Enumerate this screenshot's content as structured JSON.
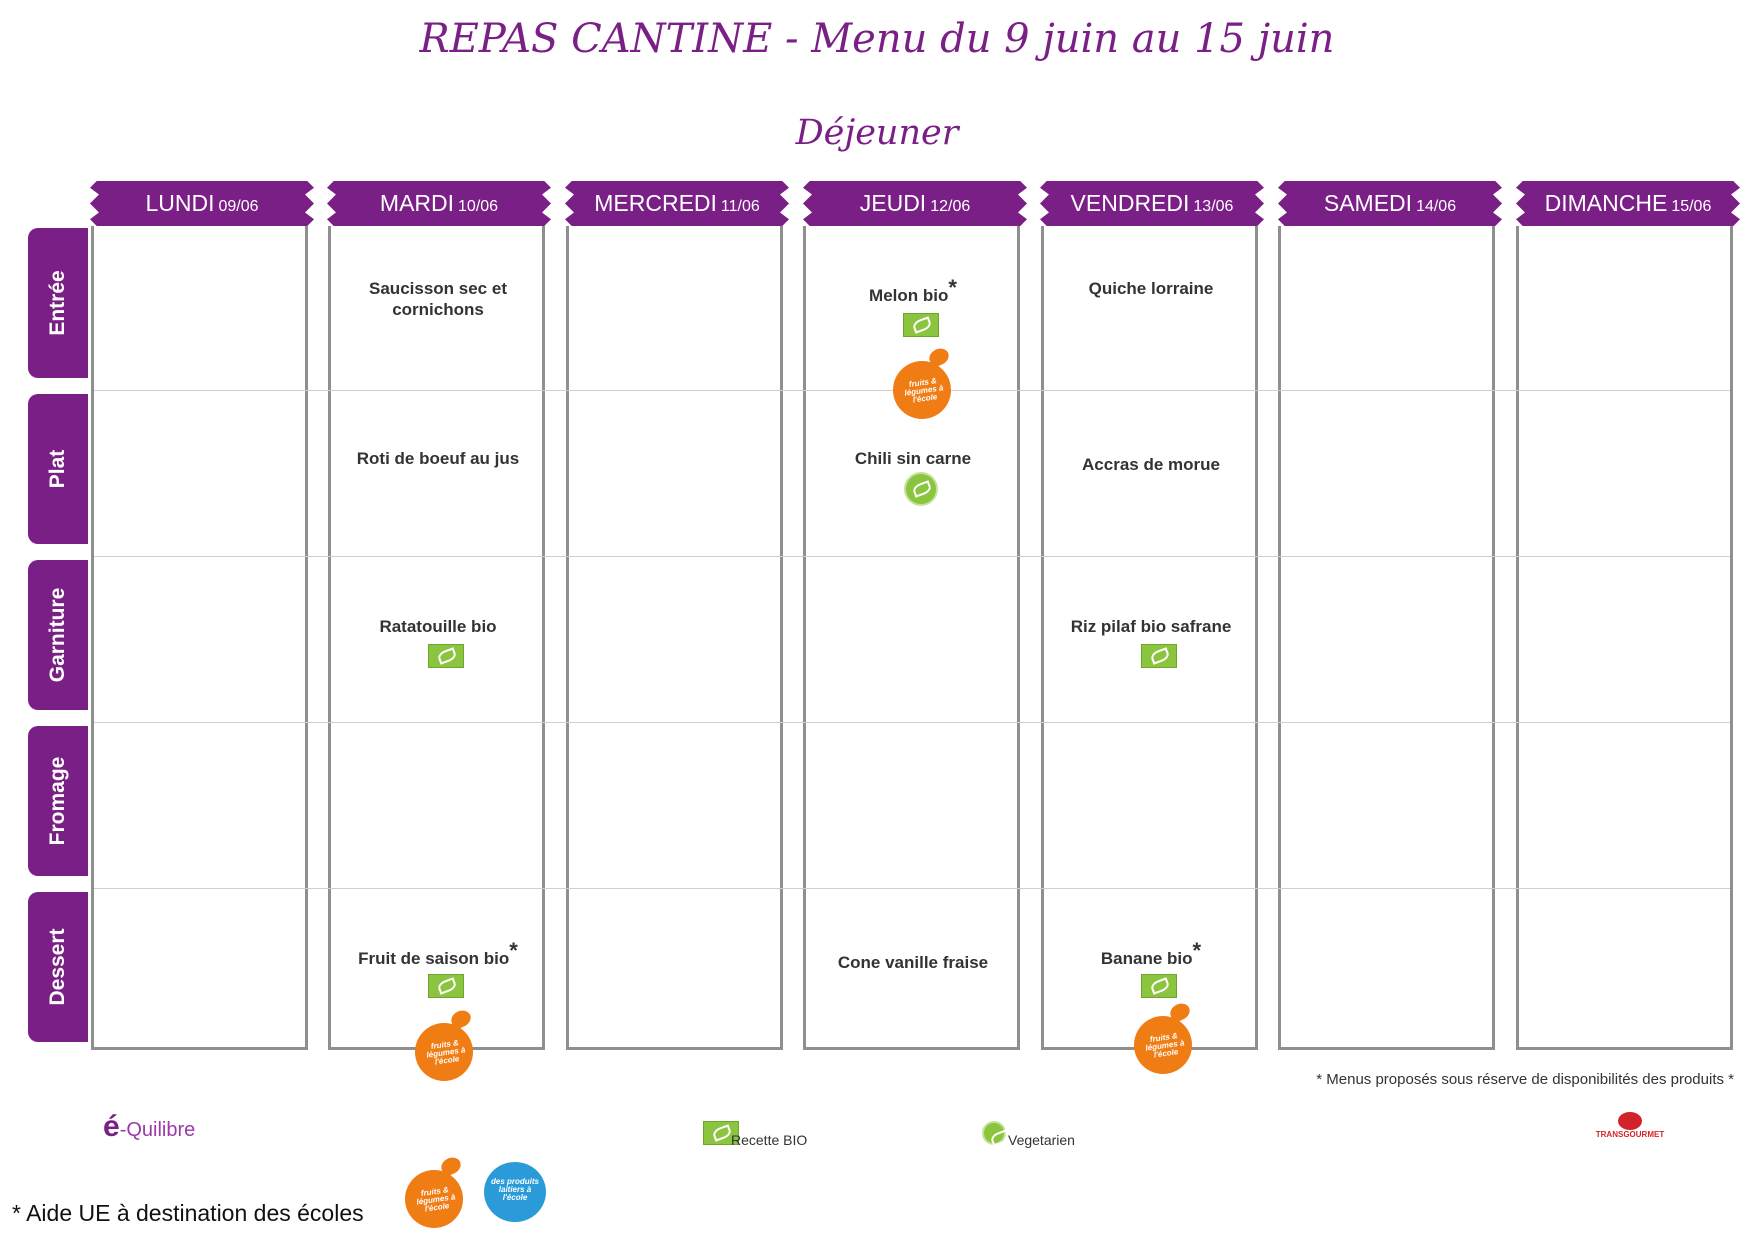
{
  "title": "REPAS CANTINE - Menu du 9 juin au 15 juin",
  "subtitle": "Déjeuner",
  "days": [
    {
      "name": "LUNDI",
      "date": "09/06"
    },
    {
      "name": "MARDI",
      "date": "10/06"
    },
    {
      "name": "MERCREDI",
      "date": "11/06"
    },
    {
      "name": "JEUDI",
      "date": "12/06"
    },
    {
      "name": "VENDREDI",
      "date": "13/06"
    },
    {
      "name": "SAMEDI",
      "date": "14/06"
    },
    {
      "name": "DIMANCHE",
      "date": "15/06"
    }
  ],
  "rows": [
    "Entrée",
    "Plat",
    "Garniture",
    "Fromage",
    "Dessert"
  ],
  "dishes": {
    "mardi_entree": "Saucisson sec et cornichons",
    "mardi_plat": "Roti de boeuf au jus",
    "mardi_garniture": "Ratatouille bio",
    "mardi_dessert": "Fruit de saison bio",
    "jeudi_entree": "Melon bio",
    "jeudi_plat": "Chili sin carne",
    "jeudi_dessert": "Cone vanille fraise",
    "vendredi_entree": "Quiche lorraine",
    "vendredi_plat": "Accras de morue",
    "vendredi_garniture": "Riz pilaf bio safrane",
    "vendredi_dessert": "Banane bio"
  },
  "asterisk": "*",
  "note": "* Menus proposés sous réserve de disponibilités des produits *",
  "legend": {
    "bio": "Recette BIO",
    "veg": "Vegetarien"
  },
  "logos": {
    "equilibre_prefix": "é",
    "equilibre_suffix": "-Quilibre",
    "transgourmet": "TRANSGOURMET",
    "fruits_legumes": "fruits & légumes à l'école",
    "produits_laitiers": "des produits laitiers à l'école"
  },
  "aide": "* Aide UE à destination des écoles",
  "icons": {
    "bio": "bio-leaf-icon",
    "veg": "vegetarian-icon",
    "fruits": "fruits-legumes-logo"
  },
  "colors": {
    "accent": "#7a1f86",
    "bio": "#8bc53f",
    "fruit_logo": "#f07c14"
  }
}
